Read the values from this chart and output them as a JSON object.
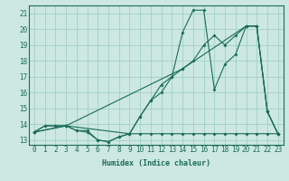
{
  "xlabel": "Humidex (Indice chaleur)",
  "bg_color": "#cce8e0",
  "grid_color": "#99ccc0",
  "line_color": "#1a6b5a",
  "xlim": [
    -0.5,
    23.5
  ],
  "ylim": [
    12.7,
    21.5
  ],
  "xticks": [
    0,
    1,
    2,
    3,
    4,
    5,
    6,
    7,
    8,
    9,
    10,
    11,
    12,
    13,
    14,
    15,
    16,
    17,
    18,
    19,
    20,
    21,
    22,
    23
  ],
  "yticks": [
    13,
    14,
    15,
    16,
    17,
    18,
    19,
    20,
    21
  ],
  "line1_x": [
    0,
    1,
    2,
    3,
    4,
    5,
    6,
    7,
    8,
    9,
    10,
    11,
    12,
    13,
    14,
    15,
    16,
    17,
    18,
    19,
    20,
    21,
    22,
    23
  ],
  "line1_y": [
    13.5,
    13.9,
    13.9,
    13.9,
    13.6,
    13.6,
    13.0,
    12.9,
    13.2,
    13.4,
    13.4,
    13.4,
    13.4,
    13.4,
    13.4,
    13.4,
    13.4,
    13.4,
    13.4,
    13.4,
    13.4,
    13.4,
    13.4,
    13.4
  ],
  "line2_x": [
    0,
    1,
    2,
    3,
    4,
    5,
    6,
    7,
    8,
    9,
    10,
    11,
    12,
    13,
    14,
    15,
    16,
    17,
    18,
    19,
    20,
    21,
    22,
    23
  ],
  "line2_y": [
    13.5,
    13.9,
    13.9,
    13.9,
    13.6,
    13.5,
    13.0,
    12.9,
    13.2,
    13.4,
    14.5,
    15.5,
    16.5,
    17.0,
    19.8,
    21.2,
    21.2,
    16.2,
    17.8,
    18.4,
    20.2,
    20.2,
    14.8,
    13.4
  ],
  "line3_x": [
    0,
    3,
    14,
    20,
    21,
    22,
    23
  ],
  "line3_y": [
    13.5,
    13.9,
    17.5,
    20.2,
    20.2,
    14.8,
    13.4
  ],
  "line4_x": [
    0,
    3,
    9,
    10,
    11,
    12,
    13,
    14,
    15,
    16,
    17,
    18,
    19,
    20,
    21,
    22,
    23
  ],
  "line4_y": [
    13.5,
    13.9,
    13.4,
    14.5,
    15.5,
    16.0,
    17.0,
    17.5,
    18.0,
    19.0,
    19.6,
    19.0,
    19.6,
    20.2,
    20.2,
    14.8,
    13.4
  ]
}
